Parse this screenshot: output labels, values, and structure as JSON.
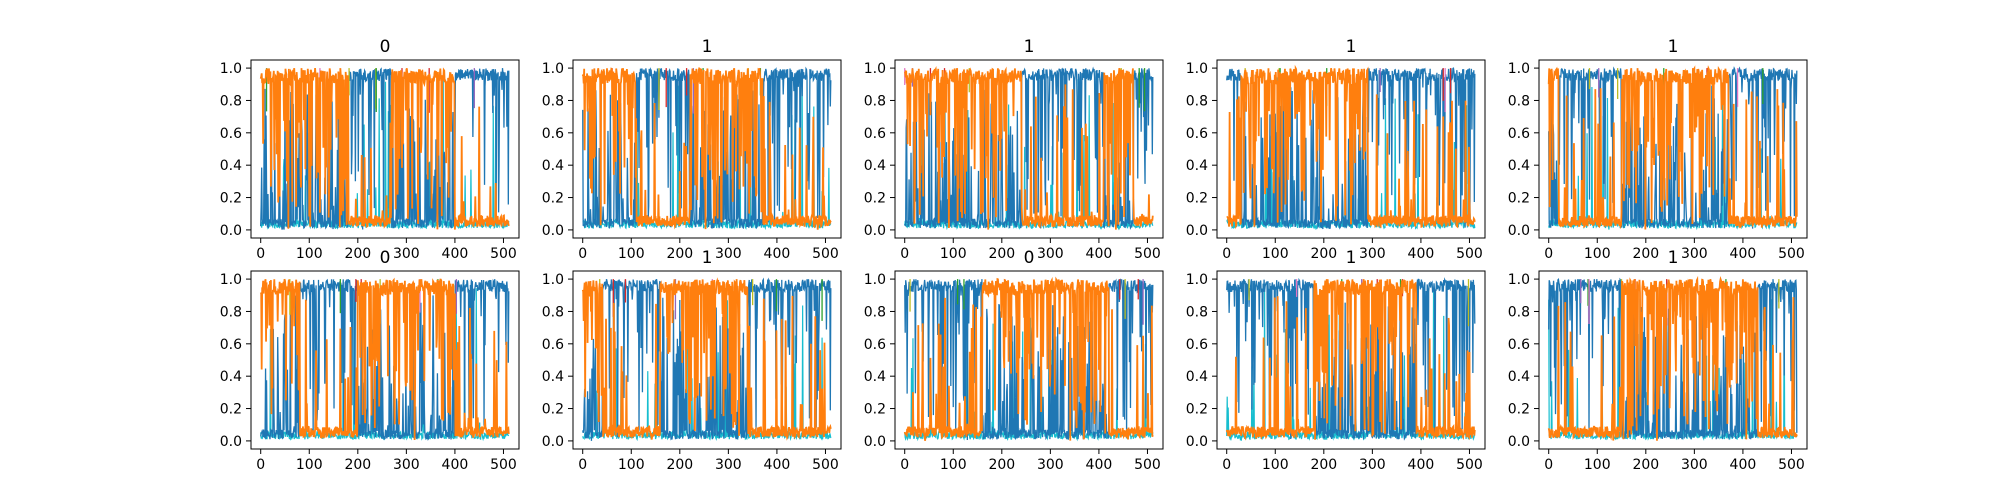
{
  "chart_data": {
    "type": "line",
    "layout": "2x5 grid of panels",
    "xlim": [
      -20,
      532
    ],
    "ylim": [
      -0.05,
      1.05
    ],
    "x_ticks": [
      0,
      100,
      200,
      300,
      400,
      500
    ],
    "y_ticks": [
      0.0,
      0.2,
      0.4,
      0.6,
      0.8,
      1.0
    ],
    "x_tick_labels": [
      "0",
      "100",
      "200",
      "300",
      "400",
      "500"
    ],
    "y_tick_labels": [
      "0.0",
      "0.2",
      "0.4",
      "0.6",
      "0.8",
      "1.0"
    ],
    "x_points": 512,
    "series_colors": {
      "blue": "#1f77b4",
      "orange": "#ff7f0e",
      "cyan": "#17becf",
      "olive": "#bcbd22",
      "green": "#2ca02c",
      "red": "#d62728",
      "purple": "#9467bd",
      "pink": "#e377c2"
    },
    "panels": [
      {
        "title": "0",
        "orange_high_segments": [
          [
            0,
            180
          ],
          [
            270,
            400
          ]
        ]
      },
      {
        "title": "1",
        "orange_high_segments": [
          [
            0,
            110
          ],
          [
            220,
            370
          ]
        ]
      },
      {
        "title": "1",
        "orange_high_segments": [
          [
            0,
            240
          ],
          [
            410,
            470
          ]
        ]
      },
      {
        "title": "1",
        "orange_high_segments": [
          [
            30,
            290
          ]
        ]
      },
      {
        "title": "1",
        "orange_high_segments": [
          [
            0,
            20
          ],
          [
            150,
            370
          ]
        ]
      },
      {
        "title": "0",
        "orange_high_segments": [
          [
            0,
            80
          ],
          [
            200,
            400
          ]
        ]
      },
      {
        "title": "1",
        "orange_high_segments": [
          [
            0,
            40
          ],
          [
            160,
            340
          ]
        ]
      },
      {
        "title": "0",
        "orange_high_segments": [
          [
            160,
            420
          ]
        ]
      },
      {
        "title": "1",
        "orange_high_segments": [
          [
            180,
            390
          ]
        ]
      },
      {
        "title": "1",
        "orange_high_segments": [
          [
            150,
            430
          ]
        ]
      }
    ]
  }
}
